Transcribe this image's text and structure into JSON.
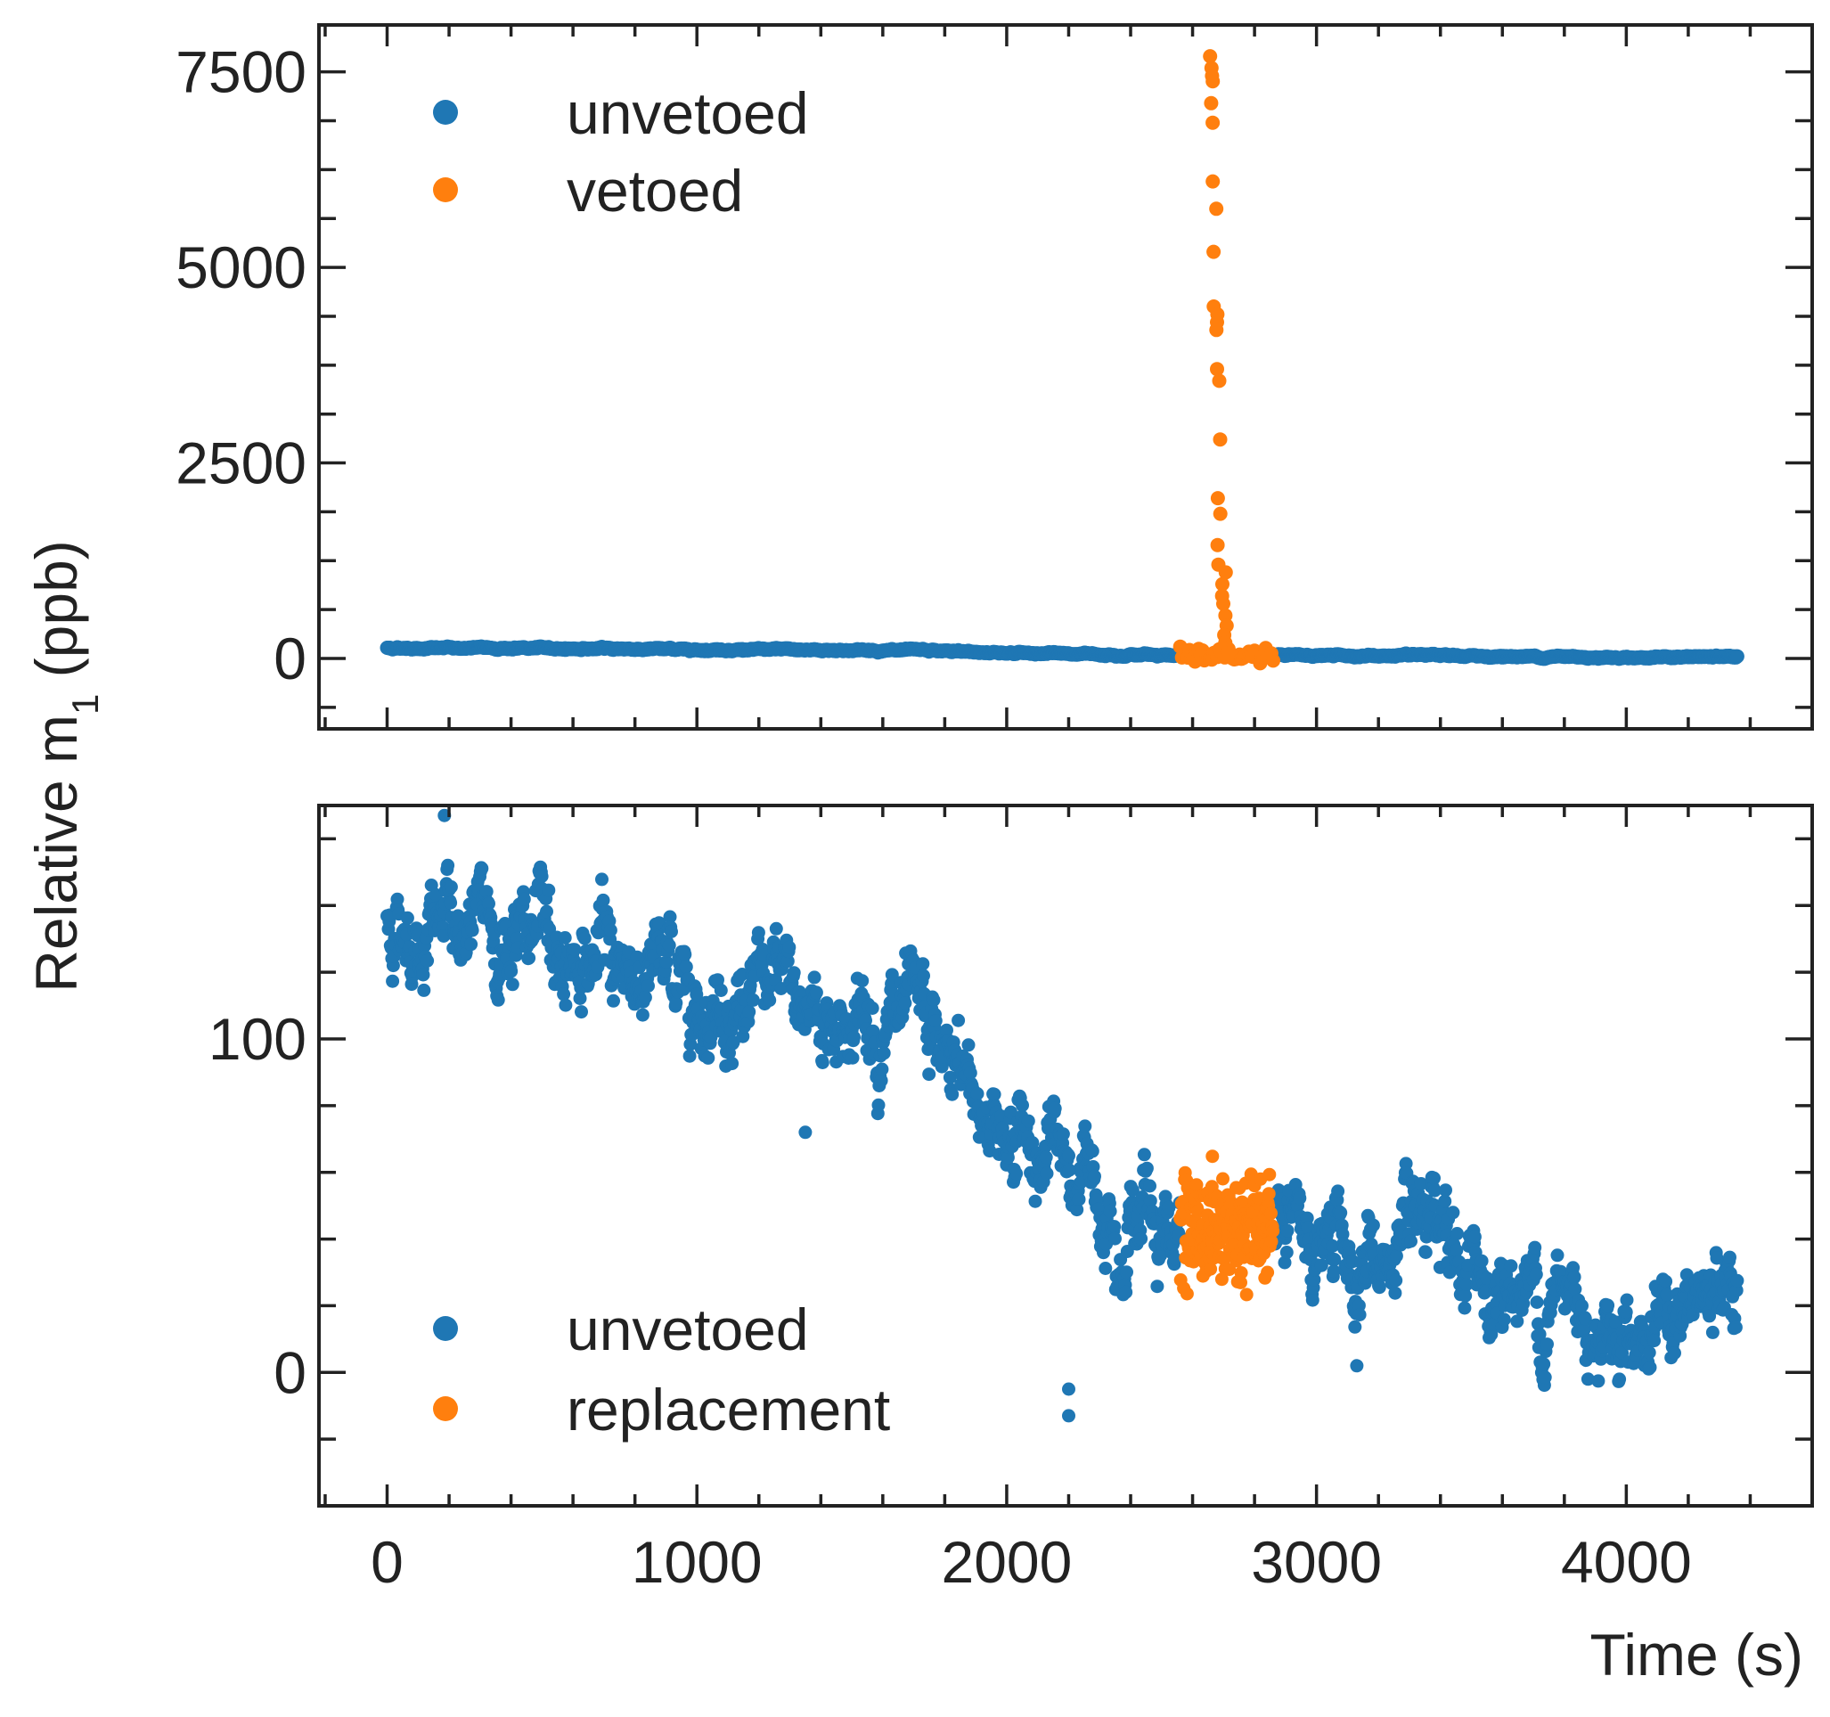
{
  "chart_data": [
    {
      "type": "scatter",
      "panel": "top",
      "xlim": [
        -220,
        4600
      ],
      "ylim": [
        -900,
        8100
      ],
      "yticks": [
        0,
        2500,
        5000,
        7500
      ],
      "ytick_labels": [
        "0",
        "2500",
        "5000",
        "7500"
      ],
      "y_minor_step": 625,
      "x_minor_step": 200,
      "series": [
        {
          "name": "unvetoed",
          "color": "#1f77b4"
        },
        {
          "name": "vetoed",
          "color": "#ff7f0e"
        }
      ],
      "spike": {
        "t_start": 2560,
        "t_end": 2860,
        "peak_values": [
          7700,
          7550,
          7450,
          7380,
          7100,
          6850,
          6100,
          5750,
          5200,
          4500,
          4400,
          4300,
          4200,
          3700,
          3550,
          2800,
          2050,
          1850,
          1450,
          1200,
          1100,
          950,
          800,
          700,
          550,
          420,
          300,
          200,
          120,
          60
        ]
      },
      "legend": [
        "unvetoed",
        "vetoed"
      ],
      "legend_loc": "upper-left"
    },
    {
      "type": "scatter",
      "panel": "bottom",
      "xlim": [
        -220,
        4600
      ],
      "ylim": [
        -40,
        170
      ],
      "yticks": [
        0,
        100
      ],
      "ytick_labels": [
        "0",
        "100"
      ],
      "y_minor_step": 20,
      "x_minor_step": 200,
      "trend": [
        [
          0,
          135
        ],
        [
          400,
          132
        ],
        [
          800,
          122
        ],
        [
          1200,
          112
        ],
        [
          1600,
          105
        ],
        [
          1900,
          82
        ],
        [
          2200,
          60
        ],
        [
          2500,
          48
        ],
        [
          2700,
          42
        ],
        [
          3000,
          38
        ],
        [
          3400,
          30
        ],
        [
          3800,
          22
        ],
        [
          4100,
          15
        ],
        [
          4360,
          20
        ]
      ],
      "series": [
        {
          "name": "unvetoed",
          "color": "#1f77b4"
        },
        {
          "name": "replacement",
          "color": "#ff7f0e",
          "t_range": [
            2560,
            2860
          ],
          "mean": 43
        }
      ],
      "outliers": [
        [
          1350,
          72
        ],
        [
          2200,
          -5
        ],
        [
          2200,
          -13
        ],
        [
          3130,
          2
        ],
        [
          185,
          167
        ]
      ],
      "legend": [
        "unvetoed",
        "replacement"
      ],
      "legend_loc": "lower-left"
    }
  ],
  "xticks": [
    0,
    1000,
    2000,
    3000,
    4000
  ],
  "xtick_labels": [
    "0",
    "1000",
    "2000",
    "3000",
    "4000"
  ],
  "xlabel": "Time (s)",
  "ylabel_main": "Relative m",
  "ylabel_sub": "1",
  "ylabel_unit": " (ppb)",
  "colors": {
    "unvetoed": "#1f77b4",
    "vetoed": "#ff7f0e",
    "axis": "#222222"
  }
}
